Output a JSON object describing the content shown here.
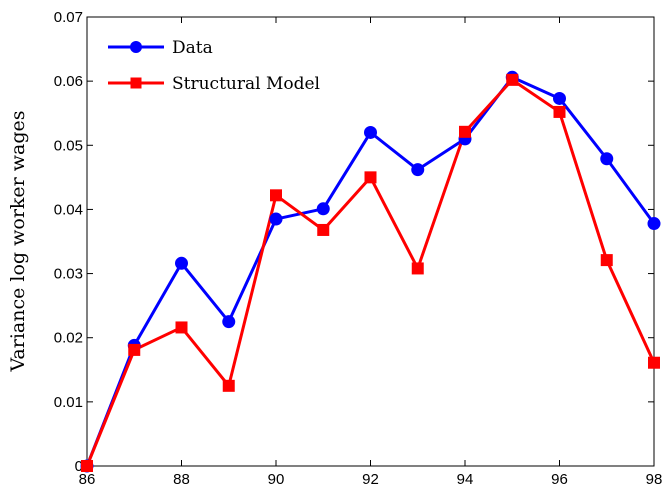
{
  "chart_data": {
    "type": "line",
    "title": "",
    "xlabel": "",
    "ylabel": "Variance log worker wages",
    "x": [
      86,
      87,
      88,
      89,
      90,
      91,
      92,
      93,
      94,
      95,
      96,
      97,
      98
    ],
    "xlim": [
      86,
      98
    ],
    "ylim": [
      0,
      0.07
    ],
    "x_ticks": [
      86,
      88,
      90,
      92,
      94,
      96,
      98
    ],
    "x_tick_labels": [
      "86",
      "88",
      "90",
      "92",
      "94",
      "96",
      "98"
    ],
    "y_ticks": [
      0,
      0.01,
      0.02,
      0.03,
      0.04,
      0.05,
      0.06,
      0.07
    ],
    "y_tick_labels": [
      "0",
      "0.01",
      "0.02",
      "0.03",
      "0.04",
      "0.05",
      "0.06",
      "0.07"
    ],
    "grid": false,
    "legend_position": "top-left",
    "series": [
      {
        "name": "Data",
        "color": "#0000ff",
        "marker": "circle",
        "values": [
          0.0,
          0.0188,
          0.0316,
          0.0225,
          0.0385,
          0.0401,
          0.052,
          0.0462,
          0.051,
          0.0606,
          0.0573,
          0.0479,
          0.0378
        ]
      },
      {
        "name": "Structural Model",
        "color": "#ff0000",
        "marker": "square",
        "values": [
          0.0,
          0.0181,
          0.0216,
          0.0125,
          0.0422,
          0.0368,
          0.045,
          0.0308,
          0.0521,
          0.0602,
          0.0552,
          0.0321,
          0.0161
        ]
      }
    ]
  }
}
